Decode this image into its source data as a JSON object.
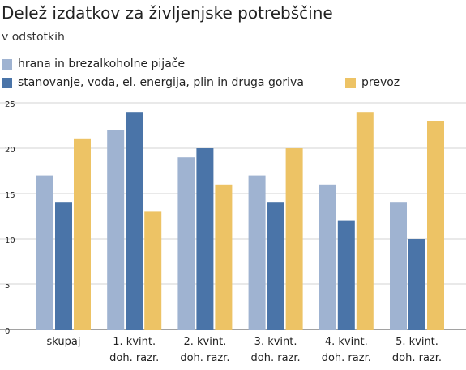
{
  "title": "Delež izdatkov za življenjske potrebščine",
  "subtitle": "v odstotkih",
  "colors": {
    "food": "#9fb3d1",
    "housing": "#4a74a8",
    "transport": "#edc365",
    "grid": "#d3d3d3",
    "axis": "#444444",
    "text": "#222222"
  },
  "chart_data": {
    "type": "bar",
    "title": "Delež izdatkov za življenjske potrebščine",
    "subtitle": "v odstotkih",
    "ylim": [
      0,
      25
    ],
    "yticks": [
      "0",
      "5",
      "10",
      "15",
      "20",
      "25"
    ],
    "grid": true,
    "legend_position": "top-left",
    "categories": [
      [
        "skupaj"
      ],
      [
        "1. kvint.",
        "doh. razr."
      ],
      [
        "2. kvint.",
        "doh. razr."
      ],
      [
        "3. kvint.",
        "doh. razr."
      ],
      [
        "4. kvint.",
        "doh. razr."
      ],
      [
        "5. kvint.",
        "doh. razr."
      ]
    ],
    "series": [
      {
        "name": "hrana in brezalkoholne pijače",
        "color": "#9fb3d1",
        "values": [
          17,
          22,
          19,
          17,
          16,
          14
        ]
      },
      {
        "name": "stanovanje, voda, el. energija, plin in druga goriva",
        "color": "#4a74a8",
        "values": [
          14,
          24,
          20,
          14,
          12,
          10
        ]
      },
      {
        "name": "prevoz",
        "color": "#edc365",
        "values": [
          21,
          13,
          16,
          20,
          24,
          23
        ]
      }
    ]
  }
}
